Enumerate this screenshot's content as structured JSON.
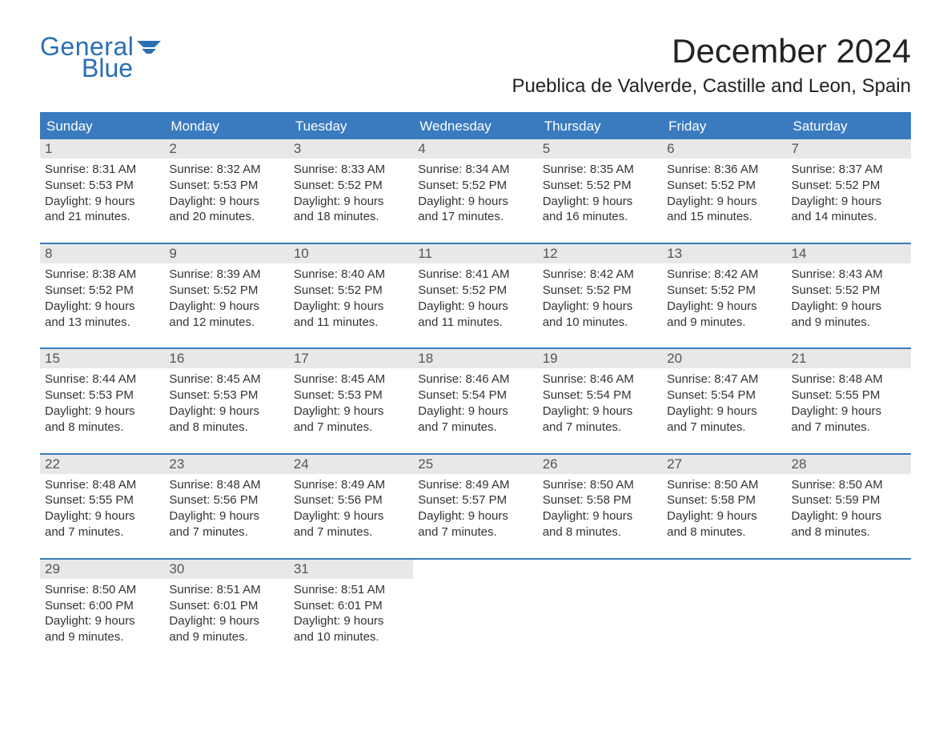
{
  "logo": {
    "part1": "General",
    "part2": "Blue"
  },
  "title": "December 2024",
  "location": "Pueblica de Valverde, Castille and Leon, Spain",
  "colors": {
    "brand_blue": "#2a6eb4",
    "header_blue": "#3a7bbf",
    "daynum_bg": "#e8e8e8",
    "text": "#333333",
    "background": "#ffffff"
  },
  "day_names": [
    "Sunday",
    "Monday",
    "Tuesday",
    "Wednesday",
    "Thursday",
    "Friday",
    "Saturday"
  ],
  "weeks": [
    [
      {
        "n": "1",
        "sunrise": "8:31 AM",
        "sunset": "5:53 PM",
        "dl1": "Daylight: 9 hours",
        "dl2": "and 21 minutes."
      },
      {
        "n": "2",
        "sunrise": "8:32 AM",
        "sunset": "5:53 PM",
        "dl1": "Daylight: 9 hours",
        "dl2": "and 20 minutes."
      },
      {
        "n": "3",
        "sunrise": "8:33 AM",
        "sunset": "5:52 PM",
        "dl1": "Daylight: 9 hours",
        "dl2": "and 18 minutes."
      },
      {
        "n": "4",
        "sunrise": "8:34 AM",
        "sunset": "5:52 PM",
        "dl1": "Daylight: 9 hours",
        "dl2": "and 17 minutes."
      },
      {
        "n": "5",
        "sunrise": "8:35 AM",
        "sunset": "5:52 PM",
        "dl1": "Daylight: 9 hours",
        "dl2": "and 16 minutes."
      },
      {
        "n": "6",
        "sunrise": "8:36 AM",
        "sunset": "5:52 PM",
        "dl1": "Daylight: 9 hours",
        "dl2": "and 15 minutes."
      },
      {
        "n": "7",
        "sunrise": "8:37 AM",
        "sunset": "5:52 PM",
        "dl1": "Daylight: 9 hours",
        "dl2": "and 14 minutes."
      }
    ],
    [
      {
        "n": "8",
        "sunrise": "8:38 AM",
        "sunset": "5:52 PM",
        "dl1": "Daylight: 9 hours",
        "dl2": "and 13 minutes."
      },
      {
        "n": "9",
        "sunrise": "8:39 AM",
        "sunset": "5:52 PM",
        "dl1": "Daylight: 9 hours",
        "dl2": "and 12 minutes."
      },
      {
        "n": "10",
        "sunrise": "8:40 AM",
        "sunset": "5:52 PM",
        "dl1": "Daylight: 9 hours",
        "dl2": "and 11 minutes."
      },
      {
        "n": "11",
        "sunrise": "8:41 AM",
        "sunset": "5:52 PM",
        "dl1": "Daylight: 9 hours",
        "dl2": "and 11 minutes."
      },
      {
        "n": "12",
        "sunrise": "8:42 AM",
        "sunset": "5:52 PM",
        "dl1": "Daylight: 9 hours",
        "dl2": "and 10 minutes."
      },
      {
        "n": "13",
        "sunrise": "8:42 AM",
        "sunset": "5:52 PM",
        "dl1": "Daylight: 9 hours",
        "dl2": "and 9 minutes."
      },
      {
        "n": "14",
        "sunrise": "8:43 AM",
        "sunset": "5:52 PM",
        "dl1": "Daylight: 9 hours",
        "dl2": "and 9 minutes."
      }
    ],
    [
      {
        "n": "15",
        "sunrise": "8:44 AM",
        "sunset": "5:53 PM",
        "dl1": "Daylight: 9 hours",
        "dl2": "and 8 minutes."
      },
      {
        "n": "16",
        "sunrise": "8:45 AM",
        "sunset": "5:53 PM",
        "dl1": "Daylight: 9 hours",
        "dl2": "and 8 minutes."
      },
      {
        "n": "17",
        "sunrise": "8:45 AM",
        "sunset": "5:53 PM",
        "dl1": "Daylight: 9 hours",
        "dl2": "and 7 minutes."
      },
      {
        "n": "18",
        "sunrise": "8:46 AM",
        "sunset": "5:54 PM",
        "dl1": "Daylight: 9 hours",
        "dl2": "and 7 minutes."
      },
      {
        "n": "19",
        "sunrise": "8:46 AM",
        "sunset": "5:54 PM",
        "dl1": "Daylight: 9 hours",
        "dl2": "and 7 minutes."
      },
      {
        "n": "20",
        "sunrise": "8:47 AM",
        "sunset": "5:54 PM",
        "dl1": "Daylight: 9 hours",
        "dl2": "and 7 minutes."
      },
      {
        "n": "21",
        "sunrise": "8:48 AM",
        "sunset": "5:55 PM",
        "dl1": "Daylight: 9 hours",
        "dl2": "and 7 minutes."
      }
    ],
    [
      {
        "n": "22",
        "sunrise": "8:48 AM",
        "sunset": "5:55 PM",
        "dl1": "Daylight: 9 hours",
        "dl2": "and 7 minutes."
      },
      {
        "n": "23",
        "sunrise": "8:48 AM",
        "sunset": "5:56 PM",
        "dl1": "Daylight: 9 hours",
        "dl2": "and 7 minutes."
      },
      {
        "n": "24",
        "sunrise": "8:49 AM",
        "sunset": "5:56 PM",
        "dl1": "Daylight: 9 hours",
        "dl2": "and 7 minutes."
      },
      {
        "n": "25",
        "sunrise": "8:49 AM",
        "sunset": "5:57 PM",
        "dl1": "Daylight: 9 hours",
        "dl2": "and 7 minutes."
      },
      {
        "n": "26",
        "sunrise": "8:50 AM",
        "sunset": "5:58 PM",
        "dl1": "Daylight: 9 hours",
        "dl2": "and 8 minutes."
      },
      {
        "n": "27",
        "sunrise": "8:50 AM",
        "sunset": "5:58 PM",
        "dl1": "Daylight: 9 hours",
        "dl2": "and 8 minutes."
      },
      {
        "n": "28",
        "sunrise": "8:50 AM",
        "sunset": "5:59 PM",
        "dl1": "Daylight: 9 hours",
        "dl2": "and 8 minutes."
      }
    ],
    [
      {
        "n": "29",
        "sunrise": "8:50 AM",
        "sunset": "6:00 PM",
        "dl1": "Daylight: 9 hours",
        "dl2": "and 9 minutes."
      },
      {
        "n": "30",
        "sunrise": "8:51 AM",
        "sunset": "6:01 PM",
        "dl1": "Daylight: 9 hours",
        "dl2": "and 9 minutes."
      },
      {
        "n": "31",
        "sunrise": "8:51 AM",
        "sunset": "6:01 PM",
        "dl1": "Daylight: 9 hours",
        "dl2": "and 10 minutes."
      },
      {},
      {},
      {},
      {}
    ]
  ],
  "labels": {
    "sunrise_prefix": "Sunrise: ",
    "sunset_prefix": "Sunset: "
  }
}
